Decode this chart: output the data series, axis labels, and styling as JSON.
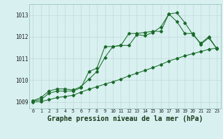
{
  "background_color": "#d8f0f0",
  "grid_color": "#c0d8d8",
  "line_color": "#1a6b2a",
  "title": "Graphe pression niveau de la mer (hPa)",
  "title_fontsize": 7.0,
  "xlim": [
    -0.5,
    23.5
  ],
  "ylim": [
    1008.7,
    1013.5
  ],
  "yticks": [
    1009,
    1010,
    1011,
    1012,
    1013
  ],
  "xticks": [
    0,
    1,
    2,
    3,
    4,
    5,
    6,
    7,
    8,
    9,
    10,
    11,
    12,
    13,
    14,
    15,
    16,
    17,
    18,
    19,
    20,
    21,
    22,
    23
  ],
  "line1": [
    1009.05,
    1009.2,
    1009.5,
    1009.6,
    1009.6,
    1009.55,
    1009.7,
    1010.05,
    1010.4,
    1011.05,
    1011.55,
    1011.6,
    1011.6,
    1012.1,
    1012.05,
    1012.2,
    1012.45,
    1013.05,
    1013.1,
    1012.65,
    1012.1,
    1011.7,
    1012.0,
    1011.45
  ],
  "line2": [
    1009.05,
    1009.1,
    1009.4,
    1009.5,
    1009.5,
    1009.5,
    1009.65,
    1010.4,
    1010.55,
    1011.55,
    1011.55,
    1011.6,
    1012.15,
    1012.15,
    1012.2,
    1012.25,
    1012.25,
    1013.05,
    1012.7,
    1012.15,
    1012.15,
    1011.65,
    1011.95,
    1011.45
  ],
  "line3": [
    1009.0,
    1009.02,
    1009.1,
    1009.2,
    1009.25,
    1009.3,
    1009.45,
    1009.58,
    1009.7,
    1009.82,
    1009.93,
    1010.05,
    1010.2,
    1010.32,
    1010.45,
    1010.58,
    1010.72,
    1010.88,
    1011.0,
    1011.12,
    1011.22,
    1011.32,
    1011.42,
    1011.48
  ]
}
